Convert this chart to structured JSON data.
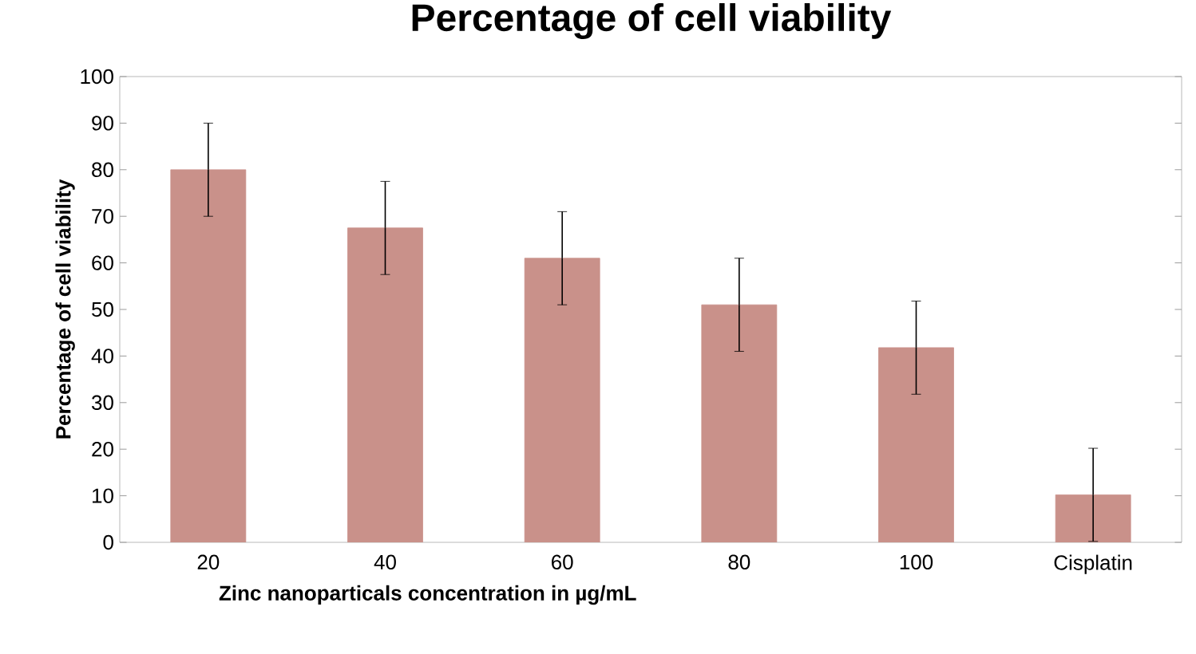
{
  "chart_data": {
    "type": "bar",
    "title": "Percentage of cell viability",
    "xlabel": "Zinc nanoparticals concentration in µg/mL",
    "ylabel": "Percentage of cell viability",
    "categories": [
      "20",
      "40",
      "60",
      "80",
      "100",
      "Cisplatin"
    ],
    "values": [
      80,
      67.5,
      61,
      51,
      41.8,
      10.2
    ],
    "errors": [
      10,
      10,
      10,
      10,
      10,
      10
    ],
    "color": "#c9918a",
    "ylim": [
      0,
      100
    ],
    "yticks": [
      0,
      10,
      20,
      30,
      40,
      50,
      60,
      70,
      80,
      90,
      100
    ],
    "grid": false
  }
}
